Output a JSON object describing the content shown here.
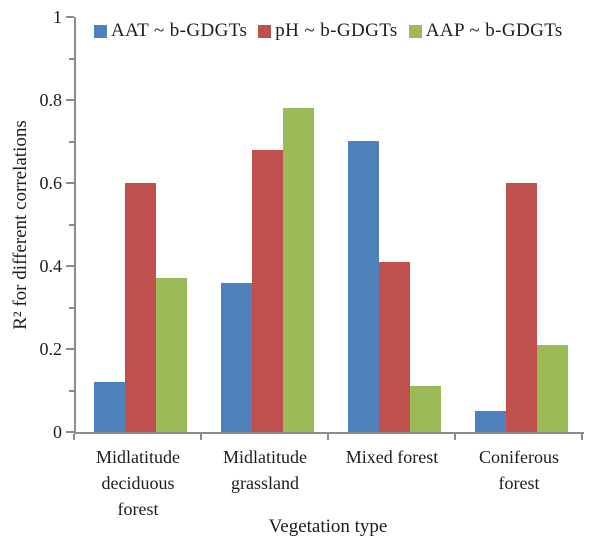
{
  "chart_data": {
    "type": "bar",
    "title": "",
    "categories": [
      "Midlatitude deciduous forest",
      "Midlatitude grassland",
      "Mixed forest",
      "Coniferous forest"
    ],
    "series": [
      {
        "name": "AAT ~ b-GDGTs",
        "color": "#4F81BD",
        "values": [
          0.12,
          0.36,
          0.7,
          0.05
        ]
      },
      {
        "name": "pH ~ b-GDGTs",
        "color": "#C0504D",
        "values": [
          0.6,
          0.68,
          0.41,
          0.6
        ]
      },
      {
        "name": "AAP ~ b-GDGTs",
        "color": "#9BBB59",
        "values": [
          0.37,
          0.78,
          0.11,
          0.21
        ]
      }
    ],
    "xlabel": "Vegetation type",
    "ylabel": "R² for different correlations",
    "ylim": [
      0,
      1
    ],
    "y_ticks": [
      {
        "value": 0,
        "label": "0"
      },
      {
        "value": 0.2,
        "label": "0.2"
      },
      {
        "value": 0.4,
        "label": "0.4"
      },
      {
        "value": 0.6,
        "label": "0.6"
      },
      {
        "value": 0.8,
        "label": "0.8"
      },
      {
        "value": 1,
        "label": "1"
      }
    ],
    "y_minor_ticks": [
      0.1,
      0.3,
      0.5,
      0.7,
      0.9
    ],
    "grid": false,
    "legend_position": "top",
    "bar_gap_within_group": 0
  },
  "colors": {
    "axis": "#8C8C8C",
    "text": "#1C1C1C",
    "background": "#FFFFFF"
  }
}
